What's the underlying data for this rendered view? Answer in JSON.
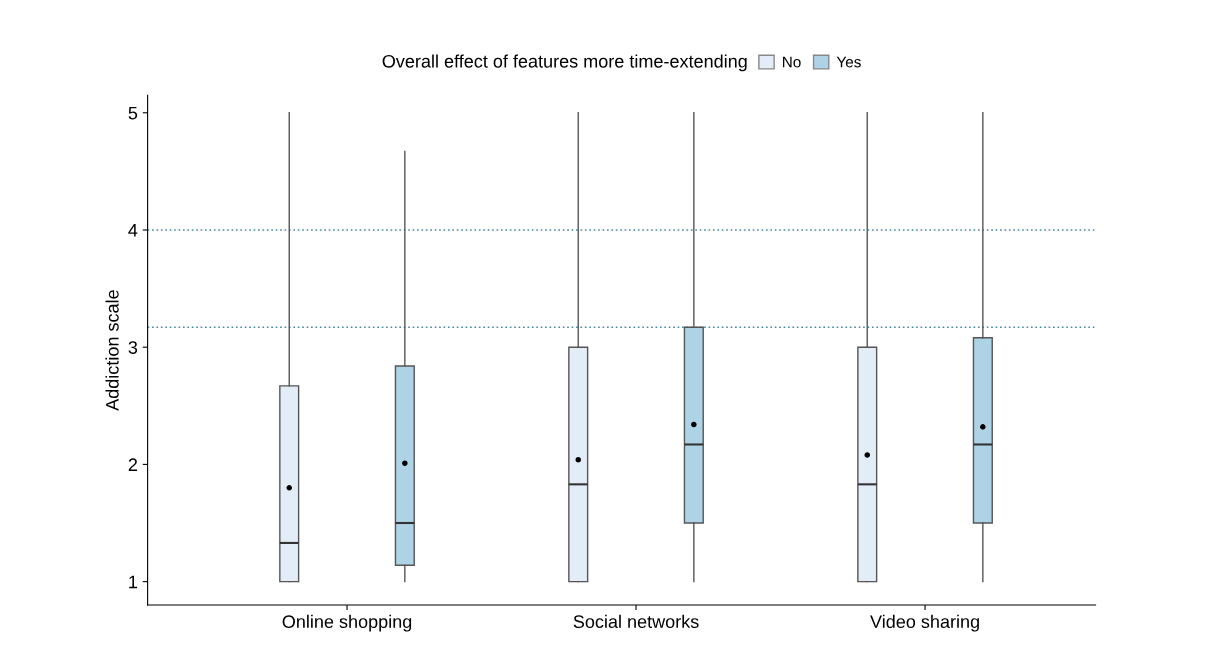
{
  "chart_data": {
    "type": "box",
    "ylabel": "Addiction scale",
    "legend_title": "Overall effect of features more time-extending",
    "legend": "top",
    "categories": [
      "Online shopping",
      "Social networks",
      "Video sharing"
    ],
    "ylim": [
      0.8,
      5.15
    ],
    "yticks": [
      1,
      2,
      3,
      4,
      5
    ],
    "grid": false,
    "ref_lines": [
      {
        "axis": "y",
        "value": 4,
        "color": "#4a8aa0",
        "line_style": "dotted"
      },
      {
        "axis": "y",
        "value": 3.17,
        "color": "#4a8aa0",
        "line_style": "dotted"
      }
    ],
    "series": [
      {
        "name": "No",
        "color": "#e3edf8",
        "boxes": [
          {
            "low": 1,
            "q1": 1,
            "median": 1.33,
            "q3": 2.67,
            "high": 5,
            "mean": 1.8
          },
          {
            "low": 1,
            "q1": 1,
            "median": 1.83,
            "q3": 3.0,
            "high": 5,
            "mean": 2.04
          },
          {
            "low": 1,
            "q1": 1,
            "median": 1.83,
            "q3": 3.0,
            "high": 5,
            "mean": 2.08
          }
        ]
      },
      {
        "name": "Yes",
        "color": "#aed3e6",
        "boxes": [
          {
            "low": 1,
            "q1": 1.14,
            "median": 1.5,
            "q3": 2.84,
            "high": 4.67,
            "mean": 2.01
          },
          {
            "low": 1,
            "q1": 1.5,
            "median": 2.17,
            "q3": 3.17,
            "high": 5,
            "mean": 2.34
          },
          {
            "low": 1,
            "q1": 1.5,
            "median": 2.17,
            "q3": 3.08,
            "high": 5,
            "mean": 2.32
          }
        ]
      }
    ]
  }
}
